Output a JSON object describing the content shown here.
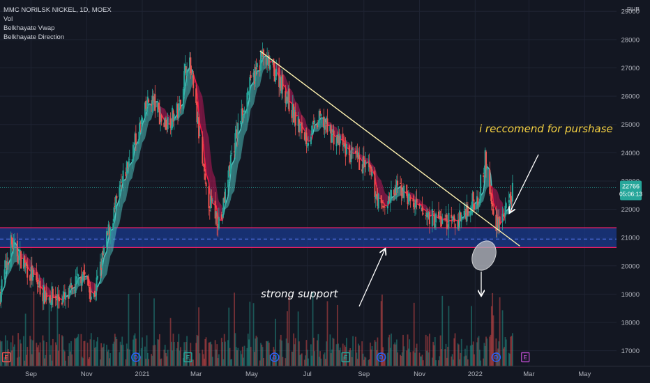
{
  "legend": {
    "symbol": "MMC NORILSK NICKEL, 1D, MOEX",
    "indicators": [
      "Vol",
      "Belkhayate Vwap",
      "Belkhayate Direction"
    ]
  },
  "currency_label": "RUB",
  "annotations": {
    "buy_text": "i reccomend for purshase",
    "support_text": "strong support"
  },
  "price_label": {
    "price": "22766",
    "countdown": "05:06:13"
  },
  "colors": {
    "background": "#131722",
    "grid": "#1f2433",
    "axis_text": "#b2b5be",
    "up": "#26a69a",
    "down": "#ef5350",
    "ribbon_up": "#4fc3c0",
    "ribbon_down": "#c2185b",
    "trendline": "#fff3b0",
    "support_zone": "#1a3a8c",
    "support_border": "#e91e63",
    "price_tag": "#26a69a"
  },
  "event_markers": [
    {
      "letter": "E",
      "color": "#ef5350",
      "date": "2020-08-05"
    },
    {
      "letter": "D",
      "color": "#2962ff",
      "date": "2020-12-25"
    },
    {
      "letter": "E",
      "color": "#26a69a",
      "date": "2021-02-20"
    },
    {
      "letter": "D",
      "color": "#2962ff",
      "date": "2021-05-26"
    },
    {
      "letter": "E",
      "color": "#26a69a",
      "date": "2021-08-12"
    },
    {
      "letter": "D",
      "color": "#2962ff",
      "date": "2021-09-20"
    },
    {
      "letter": "D",
      "color": "#2962ff",
      "date": "2022-01-24"
    },
    {
      "letter": "E",
      "color": "#ab47bc",
      "date": "2022-02-25"
    }
  ],
  "chart_data": {
    "type": "candlestick",
    "title": "MMC NORILSK NICKEL, 1D, MOEX",
    "x_labels": [
      "Sep",
      "Nov",
      "2021",
      "Mar",
      "May",
      "Jul",
      "Sep",
      "Nov",
      "2022",
      "Mar",
      "May"
    ],
    "y_ticks": [
      17000,
      18000,
      19000,
      20000,
      21000,
      22000,
      23000,
      24000,
      25000,
      26000,
      27000,
      28000,
      29000
    ],
    "ylim": [
      16450,
      29400
    ],
    "date_range": [
      "2020-07-29",
      "2022-06-05"
    ],
    "last_price": 22766,
    "price_path": [
      {
        "date": "2020-07-29",
        "price": 19000
      },
      {
        "date": "2020-08-10",
        "price": 20800
      },
      {
        "date": "2020-08-20",
        "price": 20300
      },
      {
        "date": "2020-09-15",
        "price": 19000
      },
      {
        "date": "2020-10-10",
        "price": 18800
      },
      {
        "date": "2020-10-28",
        "price": 19800
      },
      {
        "date": "2020-11-08",
        "price": 18800
      },
      {
        "date": "2020-11-25",
        "price": 21200
      },
      {
        "date": "2020-12-15",
        "price": 23500
      },
      {
        "date": "2021-01-10",
        "price": 26000
      },
      {
        "date": "2021-01-25",
        "price": 25000
      },
      {
        "date": "2021-02-10",
        "price": 25500
      },
      {
        "date": "2021-02-20",
        "price": 27500
      },
      {
        "date": "2021-03-01",
        "price": 25500
      },
      {
        "date": "2021-03-12",
        "price": 22500
      },
      {
        "date": "2021-03-28",
        "price": 21500
      },
      {
        "date": "2021-04-08",
        "price": 23800
      },
      {
        "date": "2021-04-25",
        "price": 26000
      },
      {
        "date": "2021-05-12",
        "price": 27400
      },
      {
        "date": "2021-06-01",
        "price": 26600
      },
      {
        "date": "2021-06-20",
        "price": 25000
      },
      {
        "date": "2021-07-01",
        "price": 24500
      },
      {
        "date": "2021-07-15",
        "price": 25200
      },
      {
        "date": "2021-08-01",
        "price": 24500
      },
      {
        "date": "2021-08-20",
        "price": 23800
      },
      {
        "date": "2021-09-05",
        "price": 23500
      },
      {
        "date": "2021-09-20",
        "price": 22000
      },
      {
        "date": "2021-10-10",
        "price": 22800
      },
      {
        "date": "2021-11-01",
        "price": 21900
      },
      {
        "date": "2021-11-25",
        "price": 21600
      },
      {
        "date": "2021-12-10",
        "price": 21500
      },
      {
        "date": "2021-12-20",
        "price": 21900
      },
      {
        "date": "2022-01-05",
        "price": 22500
      },
      {
        "date": "2022-01-12",
        "price": 23800
      },
      {
        "date": "2022-01-22",
        "price": 21500
      },
      {
        "date": "2022-02-05",
        "price": 21900
      },
      {
        "date": "2022-02-12",
        "price": 22766
      }
    ],
    "trendline": [
      {
        "date": "2021-05-10",
        "price": 27600
      },
      {
        "date": "2022-02-19",
        "price": 20700
      }
    ],
    "support_zone": {
      "low": 20650,
      "high": 21350,
      "mid": 20950
    },
    "current_price_line": 22766
  }
}
